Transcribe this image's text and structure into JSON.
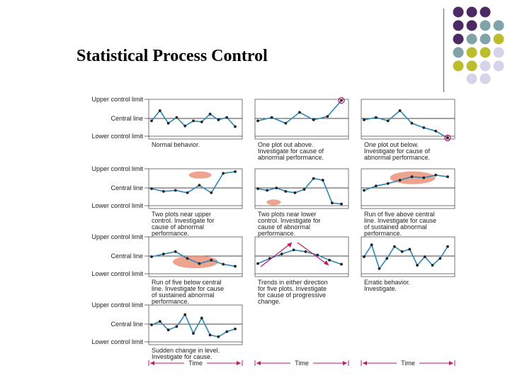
{
  "title": "Statistical Process Control",
  "colors": {
    "purple": "#4d2a63",
    "teal": "#7fa3a8",
    "olive": "#bcbd2c",
    "lavender": "#d6d4e8",
    "line": "#2b87b8",
    "highlight": "#e8846a",
    "arrow": "#c0186a"
  },
  "row_labels": {
    "upper": "Upper control limit",
    "central": "Central line",
    "lower": "Lower control limit"
  },
  "time_label": "Time",
  "panels": [
    {
      "caption": [
        "Normal behavior."
      ]
    },
    {
      "caption": [
        "One plot out above.",
        "Investigate for cause of",
        "abnormal performance."
      ]
    },
    {
      "caption": [
        "One plot out below.",
        "Investigate for cause of",
        "abnormal performance."
      ]
    },
    {
      "caption": [
        "Two plots near upper",
        "control. Investigate for",
        "cause of abnormal",
        "performance."
      ]
    },
    {
      "caption": [
        "Two plots near lower",
        "control. Investigate for",
        "cause of abnormal",
        "performance."
      ]
    },
    {
      "caption": [
        "Run of five above central",
        "line. Investigate for cause",
        "of sustained abnormal",
        "performance."
      ]
    },
    {
      "caption": [
        "Run of five below central",
        "line. Investigate for cause",
        "of sustained abnormal",
        "performance."
      ]
    },
    {
      "caption": [
        "Trends in either direction",
        "for five plots. Investigate",
        "for cause of progressive",
        "change."
      ]
    },
    {
      "caption": [
        "Erratic behavior.",
        "Investigate."
      ]
    },
    {
      "caption": [
        "Sudden change in level.",
        "Investigate for cause."
      ]
    }
  ]
}
